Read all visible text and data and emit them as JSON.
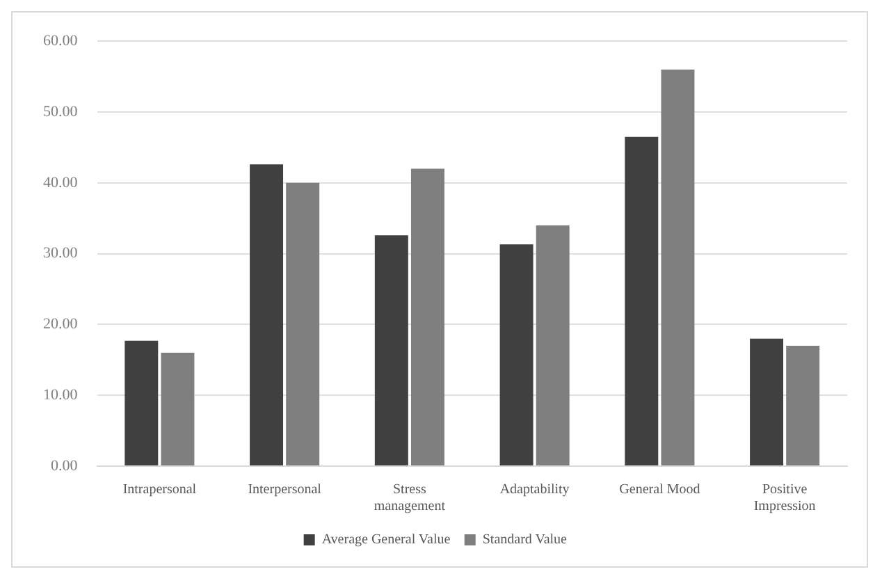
{
  "chart_data": {
    "type": "bar",
    "categories": [
      "Intrapersonal",
      "Interpersonal",
      "Stress management",
      "Adaptability",
      "General Mood",
      "Positive Impression"
    ],
    "series": [
      {
        "name": "Average General Value",
        "color": "#404040",
        "values": [
          17.7,
          42.6,
          32.6,
          31.3,
          46.5,
          18
        ]
      },
      {
        "name": "Standard Value",
        "color": "#7f7f7f",
        "values": [
          16,
          40,
          42,
          34,
          56,
          17
        ]
      }
    ],
    "ylim": [
      0,
      60
    ],
    "yticks": [
      {
        "value": 0,
        "label": "0.00"
      },
      {
        "value": 10,
        "label": "10.00"
      },
      {
        "value": 20,
        "label": "20.00"
      },
      {
        "value": 30,
        "label": "30.00"
      },
      {
        "value": 40,
        "label": "40.00"
      },
      {
        "value": 50,
        "label": "50.00"
      },
      {
        "value": 60,
        "label": "60.00"
      }
    ],
    "grid": "y",
    "legend": "bottom"
  }
}
